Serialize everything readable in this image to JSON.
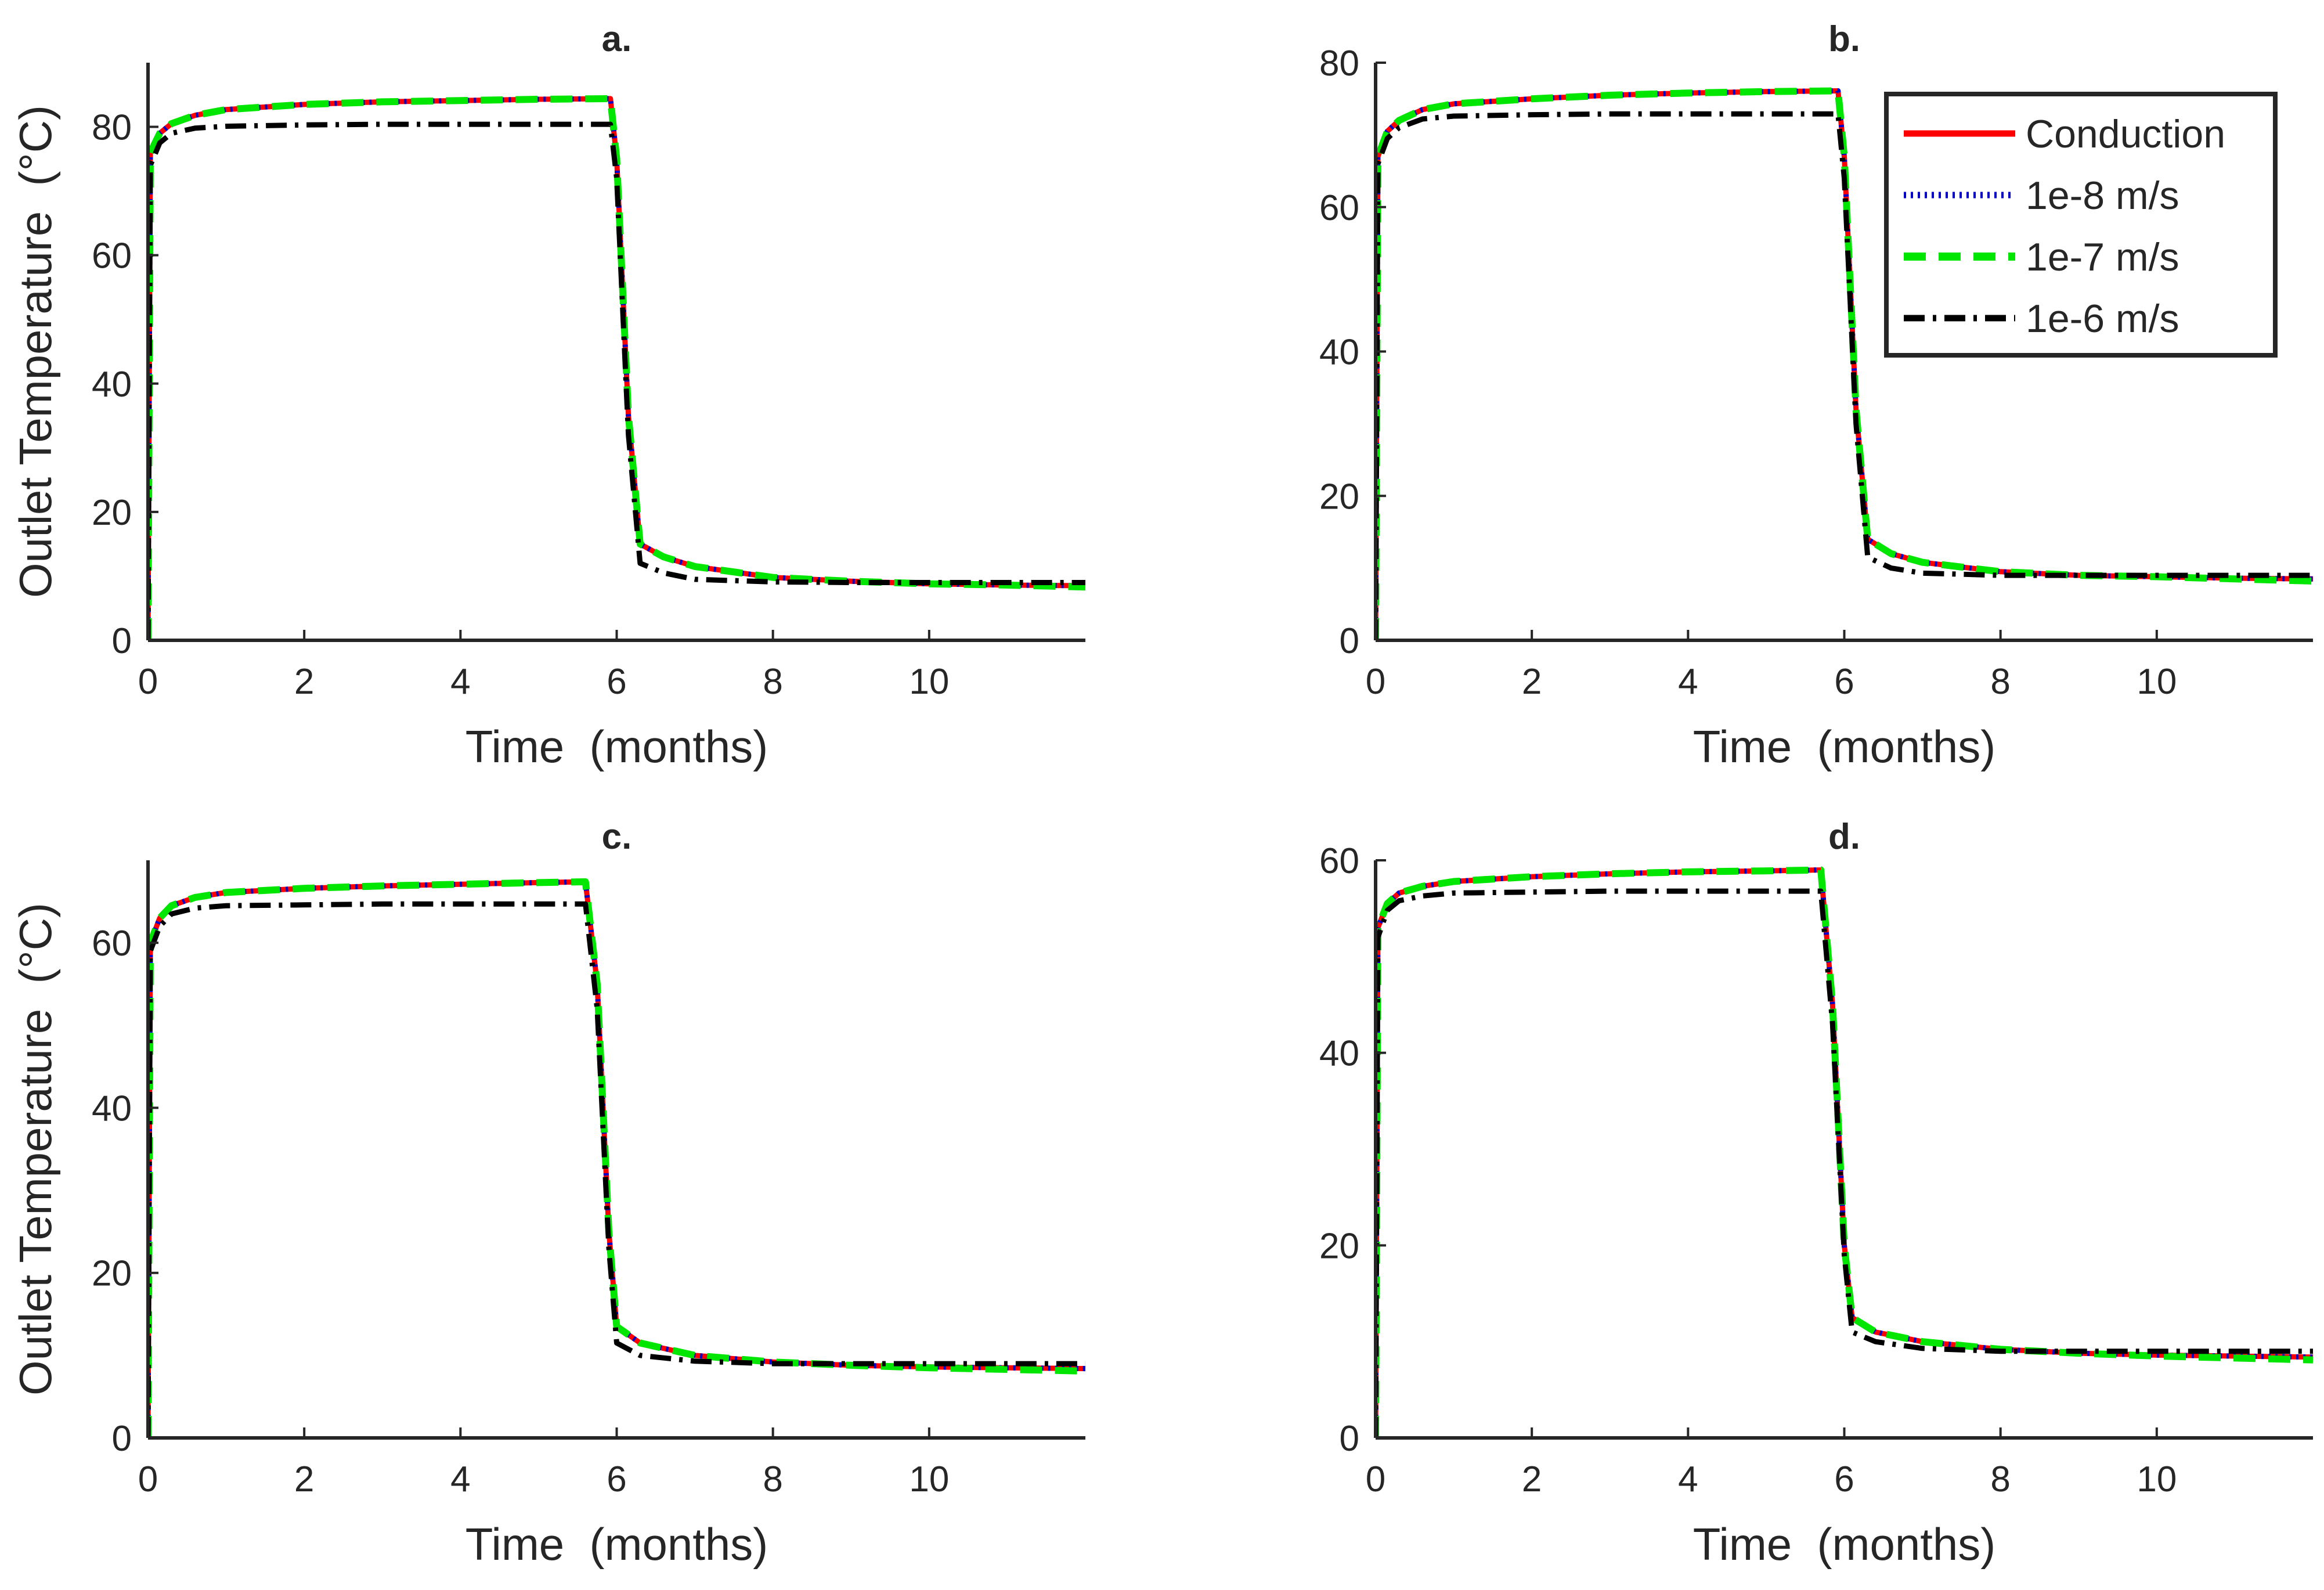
{
  "figure": {
    "description": "Four-panel figure of outlet temperature vs time"
  },
  "colors": {
    "conduction": "#ff0000",
    "flow_1e8": "#0000c8",
    "flow_1e7": "#00e600",
    "flow_1e6": "#000000",
    "axis": "#262626"
  },
  "legend": {
    "entries": [
      {
        "name": "Conduction",
        "style": "solid"
      },
      {
        "name": "1e-8 m/s",
        "style": "dotted"
      },
      {
        "name": "1e-7 m/s",
        "style": "dashed"
      },
      {
        "name": "1e-6 m/s",
        "style": "dashdot"
      }
    ]
  },
  "chart_data": [
    {
      "type": "line",
      "title": "a.",
      "xlabel": "Time  (months)",
      "ylabel": "Outlet Temperature  (°C)",
      "xlim": [
        0,
        12
      ],
      "ylim": [
        0,
        90
      ],
      "xticks": [
        0,
        2,
        4,
        6,
        8,
        10
      ],
      "yticks": [
        0,
        20,
        40,
        60,
        80
      ],
      "series": [
        {
          "name": "Conduction",
          "x": [
            0,
            0.03,
            0.15,
            0.3,
            0.6,
            1,
            2,
            3,
            4,
            5,
            5.92,
            6.0,
            6.15,
            6.3,
            6.6,
            7,
            8,
            9,
            10,
            11,
            12
          ],
          "y": [
            0,
            76,
            79,
            80.5,
            81.8,
            82.7,
            83.5,
            83.9,
            84.1,
            84.3,
            84.4,
            75,
            35,
            15,
            13,
            11.5,
            9.8,
            9.2,
            8.8,
            8.6,
            8.5
          ]
        },
        {
          "name": "1e-8 m/s",
          "x": [
            0,
            0.03,
            0.15,
            0.3,
            0.6,
            1,
            2,
            3,
            4,
            5,
            5.92,
            6.0,
            6.15,
            6.3,
            6.6,
            7,
            8,
            9,
            10,
            11,
            12
          ],
          "y": [
            0,
            76,
            79,
            80.5,
            81.8,
            82.7,
            83.5,
            83.9,
            84.1,
            84.3,
            84.4,
            75,
            35,
            15,
            13,
            11.5,
            9.8,
            9.2,
            8.8,
            8.6,
            8.5
          ]
        },
        {
          "name": "1e-7 m/s",
          "x": [
            0,
            0.03,
            0.15,
            0.3,
            0.6,
            1,
            2,
            3,
            4,
            5,
            5.92,
            6.0,
            6.15,
            6.3,
            6.6,
            7,
            8,
            9,
            10,
            11,
            12
          ],
          "y": [
            0,
            76,
            79,
            80.5,
            81.8,
            82.7,
            83.5,
            83.9,
            84.1,
            84.3,
            84.4,
            75,
            35,
            15,
            13,
            11.5,
            9.8,
            9.2,
            8.8,
            8.6,
            8.3
          ]
        },
        {
          "name": "1e-6 m/s",
          "x": [
            0,
            0.03,
            0.15,
            0.3,
            0.6,
            1,
            2,
            3,
            4,
            5,
            5.92,
            6.0,
            6.15,
            6.3,
            6.6,
            7,
            8,
            9,
            10,
            11,
            12
          ],
          "y": [
            0,
            74,
            77.5,
            79,
            79.8,
            80.1,
            80.3,
            80.4,
            80.4,
            80.4,
            80.4,
            72,
            32,
            12,
            10.5,
            9.5,
            9.1,
            9,
            9,
            9,
            9
          ]
        }
      ]
    },
    {
      "type": "line",
      "title": "b.",
      "xlabel": "Time  (months)",
      "ylabel": "",
      "xlim": [
        0,
        12
      ],
      "ylim": [
        0,
        80
      ],
      "xticks": [
        0,
        2,
        4,
        6,
        8,
        10
      ],
      "yticks": [
        0,
        20,
        40,
        60,
        80
      ],
      "series": [
        {
          "name": "Conduction",
          "x": [
            0,
            0.03,
            0.15,
            0.3,
            0.6,
            1,
            2,
            3,
            4,
            5,
            5.92,
            6.0,
            6.15,
            6.3,
            6.6,
            7,
            8,
            9,
            10,
            11,
            12
          ],
          "y": [
            0,
            67,
            70.5,
            72,
            73.5,
            74.3,
            75,
            75.5,
            75.8,
            76,
            76.1,
            67,
            32,
            14,
            12,
            10.8,
            9.5,
            9,
            8.8,
            8.6,
            8.5
          ]
        },
        {
          "name": "1e-8 m/s",
          "x": [
            0,
            0.03,
            0.15,
            0.3,
            0.6,
            1,
            2,
            3,
            4,
            5,
            5.92,
            6.0,
            6.15,
            6.3,
            6.6,
            7,
            8,
            9,
            10,
            11,
            12
          ],
          "y": [
            0,
            67,
            70.5,
            72,
            73.5,
            74.3,
            75,
            75.5,
            75.8,
            76,
            76.1,
            67,
            32,
            14,
            12,
            10.8,
            9.5,
            9,
            8.8,
            8.6,
            8.5
          ]
        },
        {
          "name": "1e-7 m/s",
          "x": [
            0,
            0.03,
            0.15,
            0.3,
            0.6,
            1,
            2,
            3,
            4,
            5,
            5.92,
            6.0,
            6.15,
            6.3,
            6.6,
            7,
            8,
            9,
            10,
            11,
            12
          ],
          "y": [
            0,
            67,
            70.5,
            72,
            73.5,
            74.3,
            75,
            75.5,
            75.8,
            76,
            76.1,
            67,
            32,
            14,
            12,
            10.8,
            9.5,
            9,
            8.8,
            8.5,
            8.2
          ]
        },
        {
          "name": "1e-6 m/s",
          "x": [
            0,
            0.03,
            0.15,
            0.3,
            0.6,
            1,
            2,
            3,
            4,
            5,
            5.92,
            6.0,
            6.15,
            6.3,
            6.6,
            7,
            8,
            9,
            10,
            11,
            12
          ],
          "y": [
            0,
            66,
            69.5,
            71,
            72.2,
            72.6,
            72.8,
            72.9,
            72.9,
            72.9,
            72.9,
            64,
            30,
            11.5,
            10,
            9.3,
            9,
            9,
            9,
            9,
            9
          ]
        }
      ]
    },
    {
      "type": "line",
      "title": "c.",
      "xlabel": "Time  (months)",
      "ylabel": "Outlet Temperature  (°C)",
      "xlim": [
        0,
        12
      ],
      "ylim": [
        0,
        70
      ],
      "xticks": [
        0,
        2,
        4,
        6,
        8,
        10
      ],
      "yticks": [
        0,
        20,
        40,
        60
      ],
      "series": [
        {
          "name": "Conduction",
          "x": [
            0,
            0.03,
            0.15,
            0.3,
            0.6,
            1,
            2,
            3,
            4,
            5,
            5.6,
            5.75,
            5.9,
            6.0,
            6.3,
            7,
            8,
            9,
            10,
            11,
            12
          ],
          "y": [
            0,
            60,
            63,
            64.5,
            65.5,
            66.1,
            66.6,
            66.9,
            67.1,
            67.3,
            67.4,
            55,
            25,
            13.5,
            11.5,
            10,
            9.2,
            8.8,
            8.6,
            8.5,
            8.4
          ]
        },
        {
          "name": "1e-8 m/s",
          "x": [
            0,
            0.03,
            0.15,
            0.3,
            0.6,
            1,
            2,
            3,
            4,
            5,
            5.6,
            5.75,
            5.9,
            6.0,
            6.3,
            7,
            8,
            9,
            10,
            11,
            12
          ],
          "y": [
            0,
            60,
            63,
            64.5,
            65.5,
            66.1,
            66.6,
            66.9,
            67.1,
            67.3,
            67.4,
            55,
            25,
            13.5,
            11.5,
            10,
            9.2,
            8.8,
            8.6,
            8.5,
            8.4
          ]
        },
        {
          "name": "1e-7 m/s",
          "x": [
            0,
            0.03,
            0.15,
            0.3,
            0.6,
            1,
            2,
            3,
            4,
            5,
            5.6,
            5.75,
            5.9,
            6.0,
            6.3,
            7,
            8,
            9,
            10,
            11,
            12
          ],
          "y": [
            0,
            60,
            63,
            64.5,
            65.5,
            66.1,
            66.6,
            66.9,
            67.1,
            67.3,
            67.4,
            55,
            25,
            13.5,
            11.5,
            10,
            9.2,
            8.8,
            8.5,
            8.3,
            8.1
          ]
        },
        {
          "name": "1e-6 m/s",
          "x": [
            0,
            0.03,
            0.15,
            0.3,
            0.6,
            1,
            2,
            3,
            4,
            5,
            5.6,
            5.75,
            5.9,
            6.0,
            6.3,
            7,
            8,
            9,
            10,
            11,
            12
          ],
          "y": [
            0,
            59,
            62,
            63.5,
            64.2,
            64.5,
            64.6,
            64.7,
            64.7,
            64.7,
            64.7,
            52,
            23,
            11.5,
            10,
            9.3,
            9,
            9,
            9,
            9,
            9
          ]
        }
      ]
    },
    {
      "type": "line",
      "title": "d.",
      "xlabel": "Time  (months)",
      "ylabel": "",
      "xlim": [
        0,
        12
      ],
      "ylim": [
        0,
        60
      ],
      "xticks": [
        0,
        2,
        4,
        6,
        8,
        10
      ],
      "yticks": [
        0,
        20,
        40,
        60
      ],
      "series": [
        {
          "name": "Conduction",
          "x": [
            0,
            0.03,
            0.15,
            0.3,
            0.6,
            1,
            2,
            3,
            4,
            5,
            5.7,
            5.85,
            6.0,
            6.1,
            6.4,
            7,
            8,
            9,
            10,
            11,
            12
          ],
          "y": [
            0,
            53,
            55.5,
            56.6,
            57.3,
            57.8,
            58.3,
            58.6,
            58.8,
            58.9,
            59,
            45,
            20,
            12.5,
            11,
            10,
            9.2,
            8.8,
            8.6,
            8.5,
            8.4
          ]
        },
        {
          "name": "1e-8 m/s",
          "x": [
            0,
            0.03,
            0.15,
            0.3,
            0.6,
            1,
            2,
            3,
            4,
            5,
            5.7,
            5.85,
            6.0,
            6.1,
            6.4,
            7,
            8,
            9,
            10,
            11,
            12
          ],
          "y": [
            0,
            53,
            55.5,
            56.6,
            57.3,
            57.8,
            58.3,
            58.6,
            58.8,
            58.9,
            59,
            45,
            20,
            12.5,
            11,
            10,
            9.2,
            8.8,
            8.6,
            8.5,
            8.4
          ]
        },
        {
          "name": "1e-7 m/s",
          "x": [
            0,
            0.03,
            0.15,
            0.3,
            0.6,
            1,
            2,
            3,
            4,
            5,
            5.7,
            5.85,
            6.0,
            6.1,
            6.4,
            7,
            8,
            9,
            10,
            11,
            12
          ],
          "y": [
            0,
            53,
            55.5,
            56.6,
            57.3,
            57.8,
            58.3,
            58.6,
            58.8,
            58.9,
            59,
            45,
            20,
            12.5,
            11,
            10,
            9.2,
            8.8,
            8.5,
            8.3,
            8.1
          ]
        },
        {
          "name": "1e-6 m/s",
          "x": [
            0,
            0.03,
            0.15,
            0.3,
            0.6,
            1,
            2,
            3,
            4,
            5,
            5.7,
            5.85,
            6.0,
            6.1,
            6.4,
            7,
            8,
            9,
            10,
            11,
            12
          ],
          "y": [
            0,
            52,
            54.8,
            55.8,
            56.3,
            56.6,
            56.7,
            56.8,
            56.8,
            56.8,
            56.8,
            43,
            19,
            11,
            10,
            9.3,
            9,
            9,
            9,
            9,
            9
          ]
        }
      ]
    }
  ]
}
